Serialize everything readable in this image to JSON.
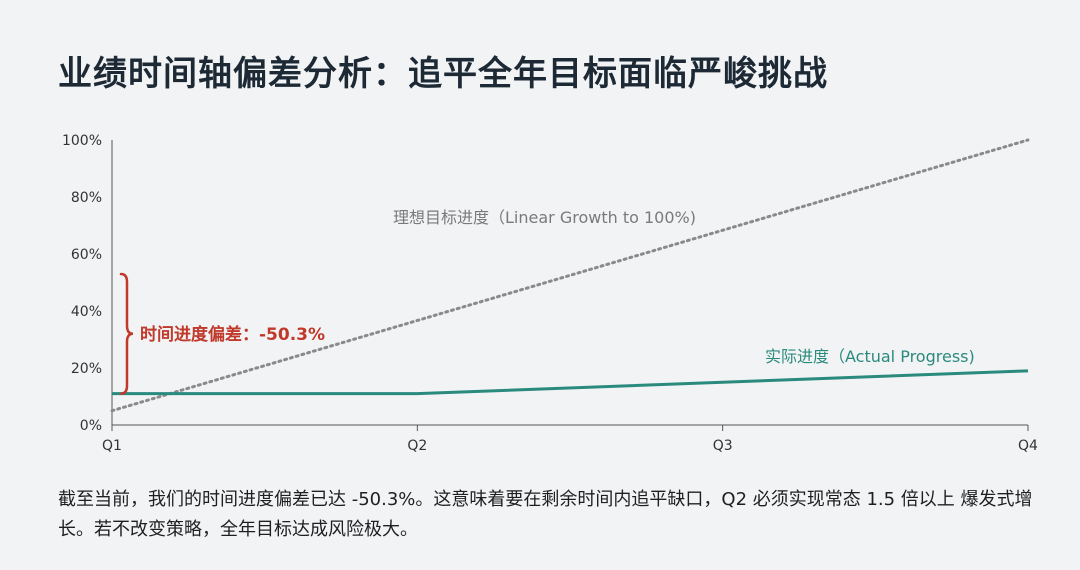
{
  "title": "业绩时间轴偏差分析：追平全年目标面临严峻挑战",
  "summary": "截至当前，我们的时间进度偏差已达 -50.3%。这意味着要在剩余时间内追平缺口，Q2 必须实现常态 1.5 倍以上 爆发式增长。若不改变策略，全年目标达成风险极大。",
  "colors": {
    "actual": "#2a8a7e",
    "ideal": "#8a8a8a",
    "gap": "#c0392b",
    "axis": "#555555"
  },
  "chart_data": {
    "type": "line",
    "x_categories": [
      "Q1",
      "Q2",
      "Q3",
      "Q4"
    ],
    "ylim": [
      0,
      100
    ],
    "y_ticks": [
      "0%",
      "20%",
      "40%",
      "60%",
      "80%",
      "100%"
    ],
    "series": [
      {
        "name": "理想目标进度（Linear Growth to 100%)",
        "style": "dotted",
        "points": [
          [
            0,
            5
          ],
          [
            3,
            100
          ]
        ]
      },
      {
        "name": "实际进度（Actual Progress)",
        "style": "solid",
        "points": [
          [
            0,
            11
          ],
          [
            1,
            11
          ],
          [
            2,
            15
          ],
          [
            3,
            19
          ]
        ]
      }
    ],
    "annotation": {
      "label": "时间进度偏差：-50.3%",
      "y_from": 11,
      "y_to": 53
    }
  }
}
